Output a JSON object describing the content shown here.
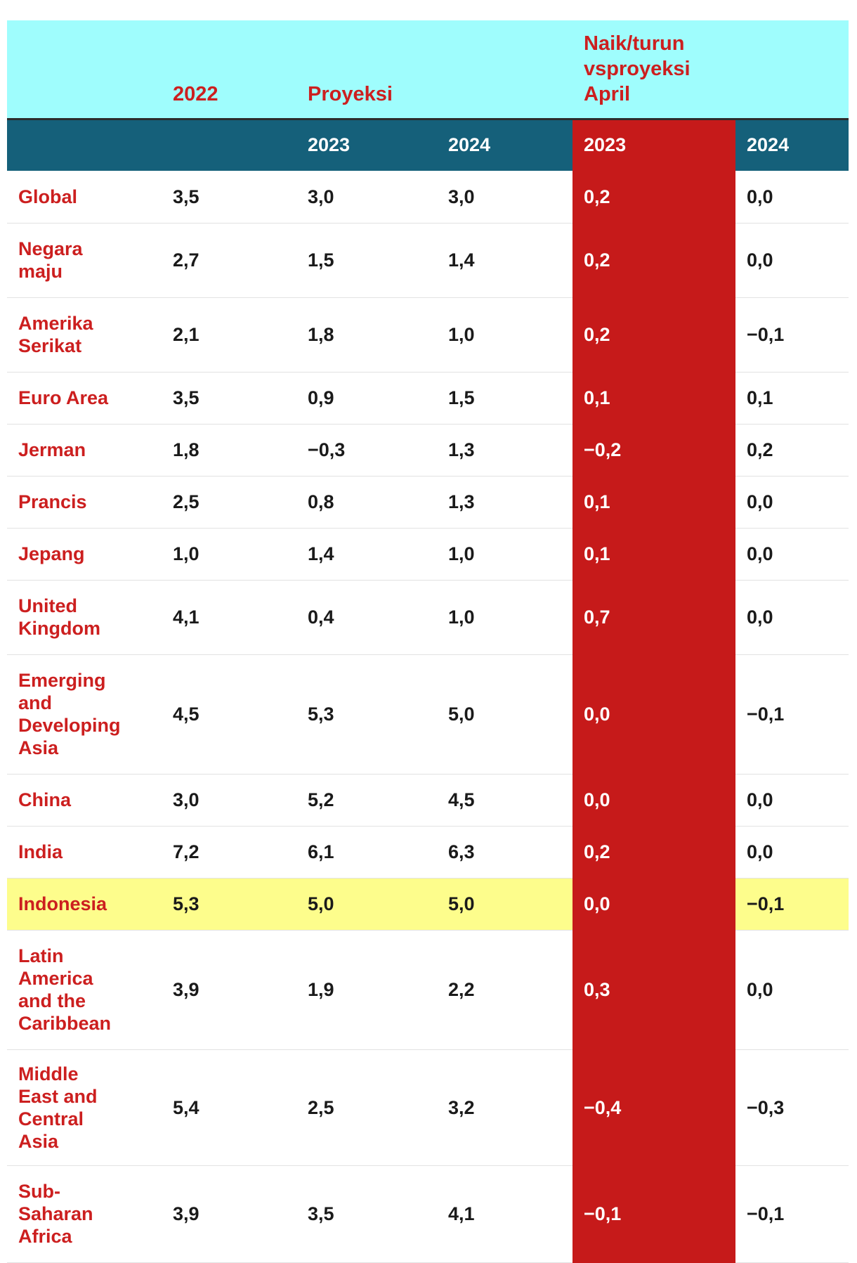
{
  "header": {
    "col_2022": "2022",
    "col_projection": "Proyeksi",
    "col_change": "Naik/turun vsproyeksi April",
    "sub_p2023": "2023",
    "sub_p2024": "2024",
    "sub_d2023": "2023",
    "sub_d2024": "2024"
  },
  "colors": {
    "header_bg": "#9ffdfd",
    "subheader_bg": "#15607a",
    "highlight_column": "#c61a1a",
    "highlight_row": "#fdfd8c",
    "label_red": "#cc1f1f"
  },
  "rows": [
    {
      "name": "Global",
      "y2022": "3,5",
      "p2023": "3,0",
      "p2024": "3,0",
      "d2023": "0,2",
      "d2024": "0,0"
    },
    {
      "name": "Negara maju",
      "y2022": "2,7",
      "p2023": "1,5",
      "p2024": "1,4",
      "d2023": "0,2",
      "d2024": "0,0"
    },
    {
      "name": "Amerika Serikat",
      "y2022": "2,1",
      "p2023": "1,8",
      "p2024": "1,0",
      "d2023": "0,2",
      "d2024": "−0,1"
    },
    {
      "name": "Euro Area",
      "y2022": "3,5",
      "p2023": "0,9",
      "p2024": "1,5",
      "d2023": "0,1",
      "d2024": "0,1"
    },
    {
      "name": "Jerman",
      "y2022": "1,8",
      "p2023": "−0,3",
      "p2024": "1,3",
      "d2023": "−0,2",
      "d2024": "0,2"
    },
    {
      "name": "Prancis",
      "y2022": "2,5",
      "p2023": "0,8",
      "p2024": "1,3",
      "d2023": "0,1",
      "d2024": "0,0"
    },
    {
      "name": "Jepang",
      "y2022": "1,0",
      "p2023": "1,4",
      "p2024": "1,0",
      "d2023": "0,1",
      "d2024": "0,0"
    },
    {
      "name": "United Kingdom",
      "y2022": "4,1",
      "p2023": "0,4",
      "p2024": "1,0",
      "d2023": "0,7",
      "d2024": "0,0"
    },
    {
      "name": "Emerging and Developing Asia",
      "y2022": "4,5",
      "p2023": "5,3",
      "p2024": "5,0",
      "d2023": "0,0",
      "d2024": "−0,1"
    },
    {
      "name": "China",
      "y2022": "3,0",
      "p2023": "5,2",
      "p2024": "4,5",
      "d2023": "0,0",
      "d2024": "0,0"
    },
    {
      "name": "India",
      "y2022": "7,2",
      "p2023": "6,1",
      "p2024": "6,3",
      "d2023": "0,2",
      "d2024": "0,0"
    },
    {
      "name": "Indonesia",
      "y2022": "5,3",
      "p2023": "5,0",
      "p2024": "5,0",
      "d2023": "0,0",
      "d2024": "−0,1"
    },
    {
      "name": "Latin America and the Caribbean",
      "y2022": "3,9",
      "p2023": "1,9",
      "p2024": "2,2",
      "d2023": "0,3",
      "d2024": "0,0"
    },
    {
      "name": "Middle East and Central Asia",
      "y2022": "5,4",
      "p2023": "2,5",
      "p2024": "3,2",
      "d2023": "−0,4",
      "d2024": "−0,3"
    },
    {
      "name": "Sub-Saharan Africa",
      "y2022": "3,9",
      "p2023": "3,5",
      "p2024": "4,1",
      "d2023": "−0,1",
      "d2024": "−0,1"
    }
  ]
}
